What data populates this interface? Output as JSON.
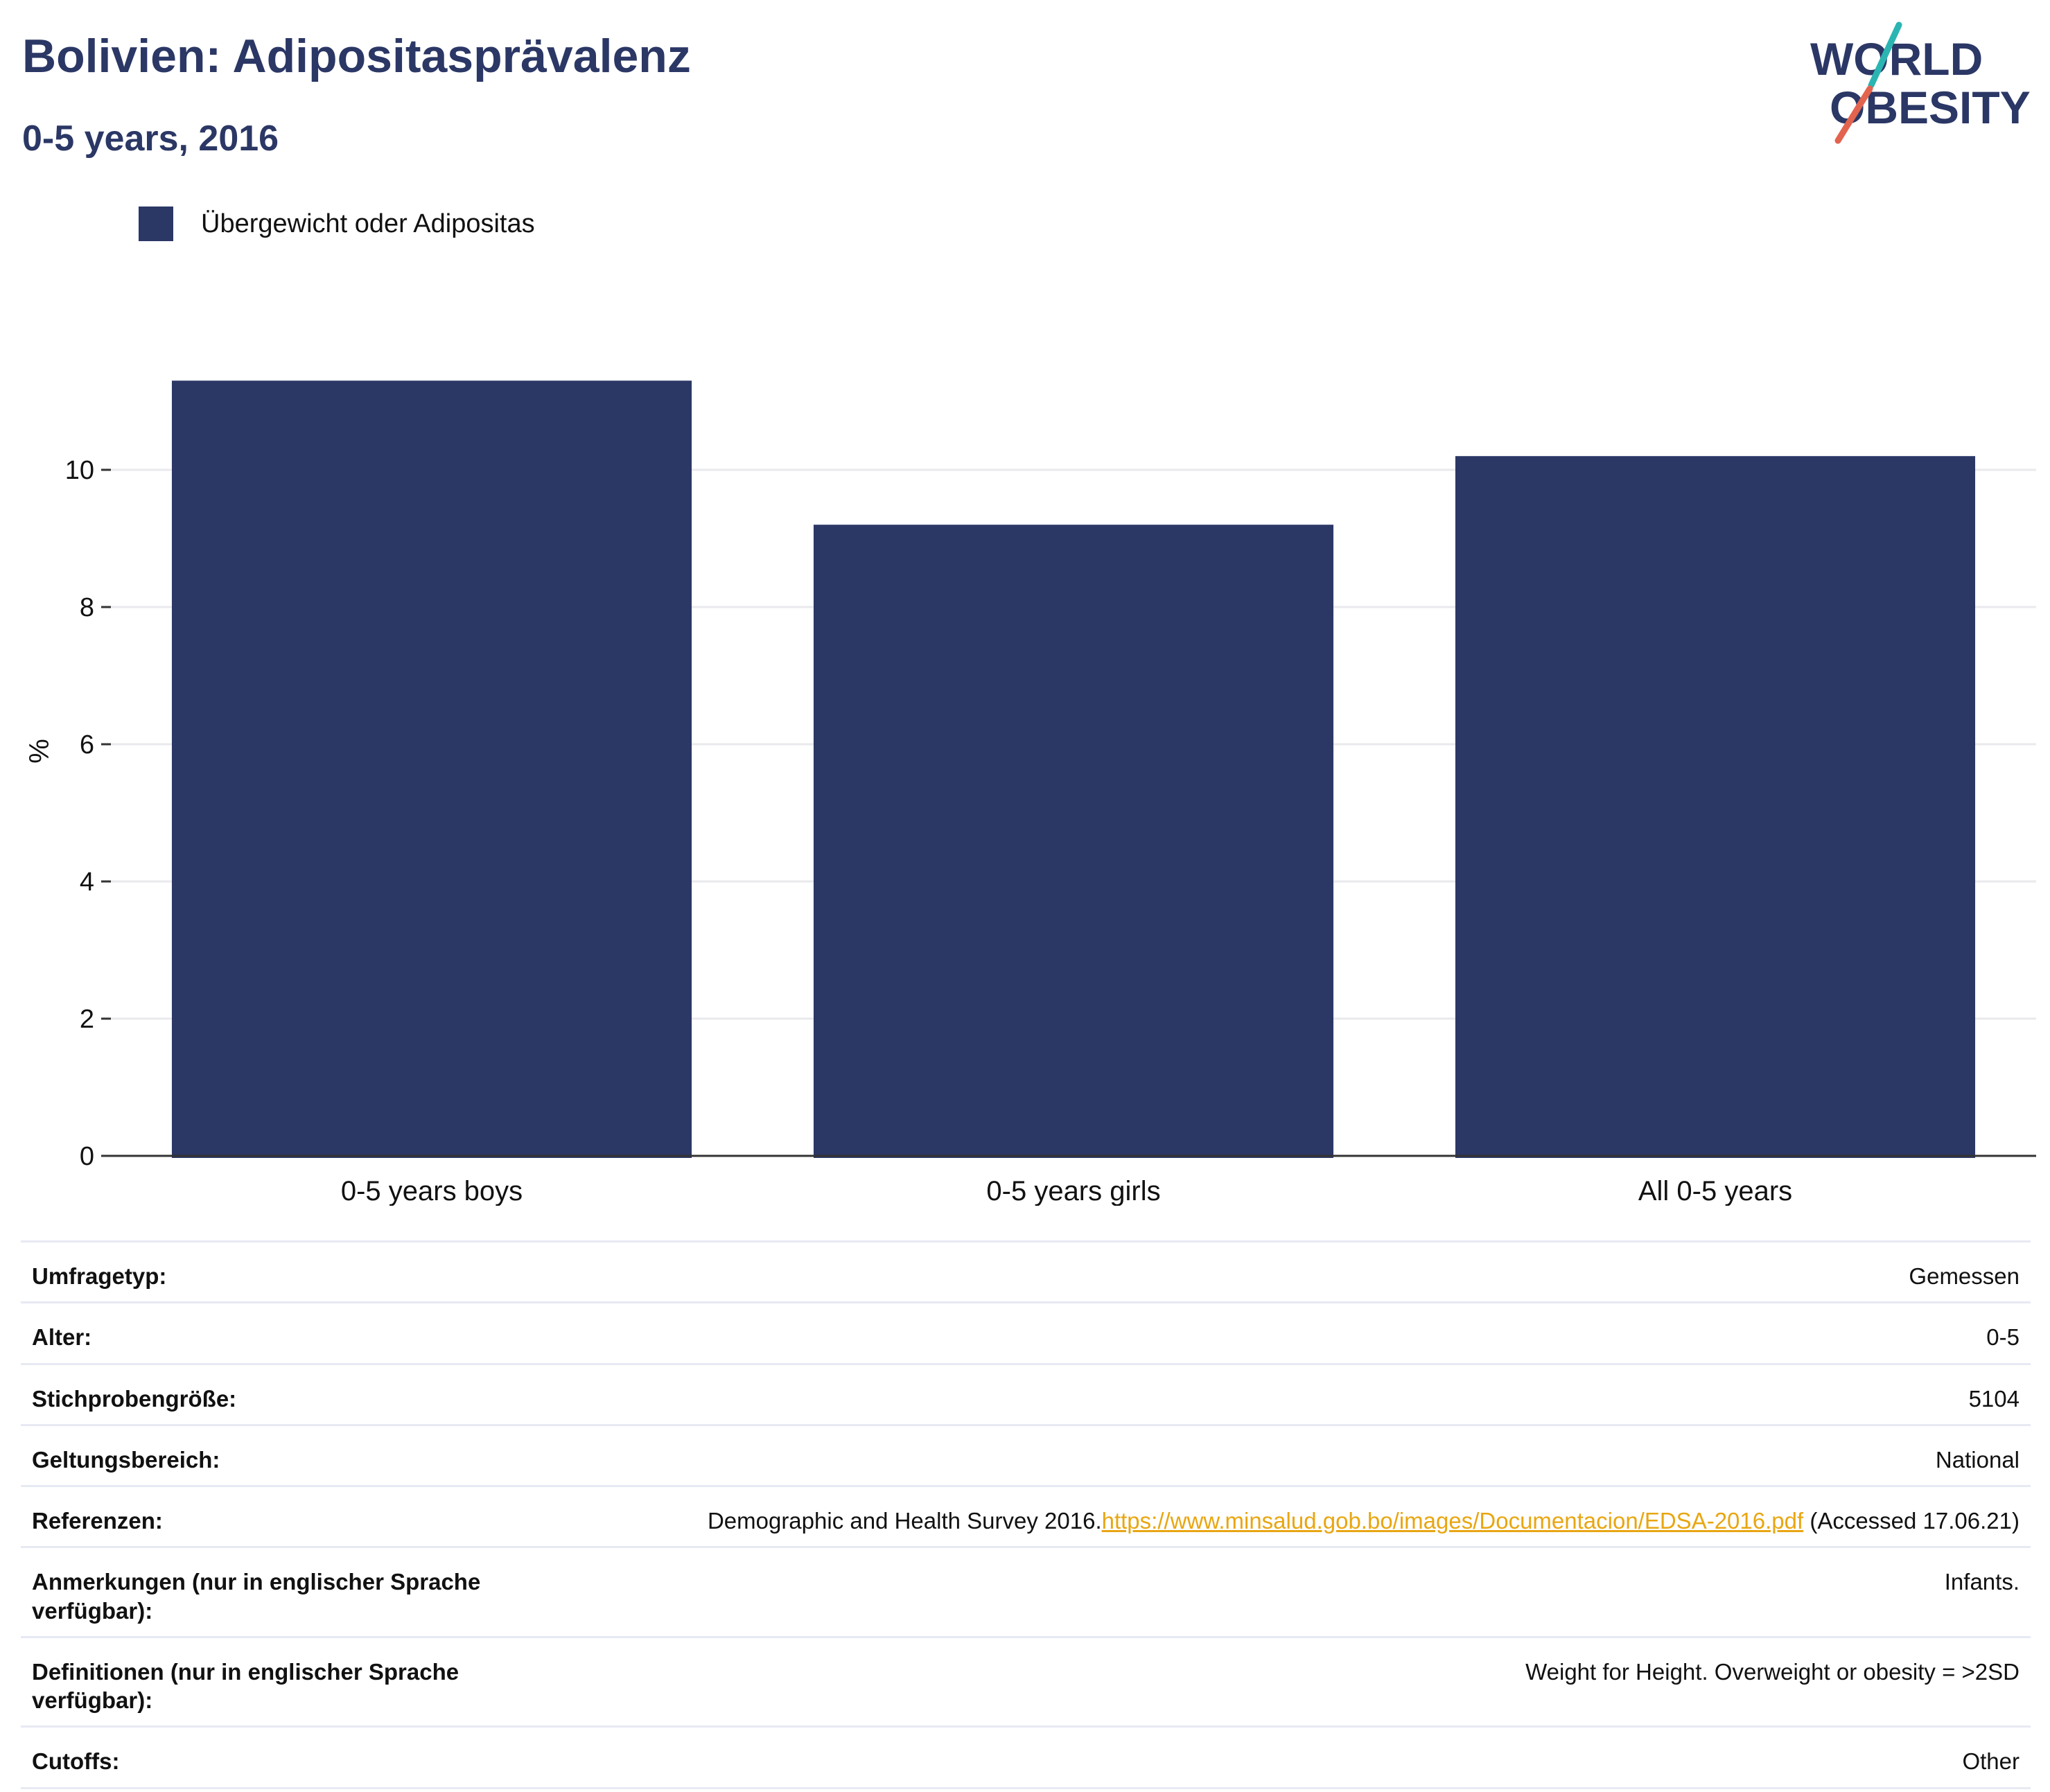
{
  "header": {
    "title": "Bolivien: Adipositasprävalenz",
    "subtitle": "0-5 years, 2016"
  },
  "logo": {
    "line1": "WORLD",
    "line2": "OBESITY",
    "colors": {
      "text": "#2b3765",
      "slash_top": "#2bb5b2",
      "slash_bottom": "#e2644f"
    }
  },
  "legend": {
    "label": "Übergewicht oder Adipositas",
    "color": "#2b3765"
  },
  "chart_data": {
    "type": "bar",
    "categories": [
      "0-5 years boys",
      "0-5 years girls",
      "All 0-5 years"
    ],
    "series": [
      {
        "name": "Übergewicht oder Adipositas",
        "values": [
          11.3,
          9.2,
          10.2
        ],
        "color": "#2b3765"
      }
    ],
    "ylabel": "%",
    "ylim": [
      0,
      12
    ],
    "yticks": [
      0,
      2,
      4,
      6,
      8,
      10
    ],
    "grid": true,
    "legend_position": "top-left"
  },
  "meta": {
    "rows": [
      {
        "label": "Umfragetyp:",
        "value": "Gemessen"
      },
      {
        "label": "Alter:",
        "value": "0-5"
      },
      {
        "label": "Stichprobengröße:",
        "value": "5104"
      },
      {
        "label": "Geltungsbereich:",
        "value": "National"
      },
      {
        "label": "Referenzen:",
        "value_prefix": "Demographic and Health Survey 2016.",
        "link": "https://www.minsalud.gob.bo/images/Documentacion/EDSA-2016.pdf",
        "value_suffix": " (Accessed 17.06.21)"
      },
      {
        "label": "Anmerkungen (nur in englischer Sprache verfügbar):",
        "value": "Infants."
      },
      {
        "label": "Definitionen (nur in englischer Sprache verfügbar):",
        "value": "Weight for Height. Overweight or obesity = >2SD"
      },
      {
        "label": "Cutoffs:",
        "value": "Other"
      }
    ]
  }
}
